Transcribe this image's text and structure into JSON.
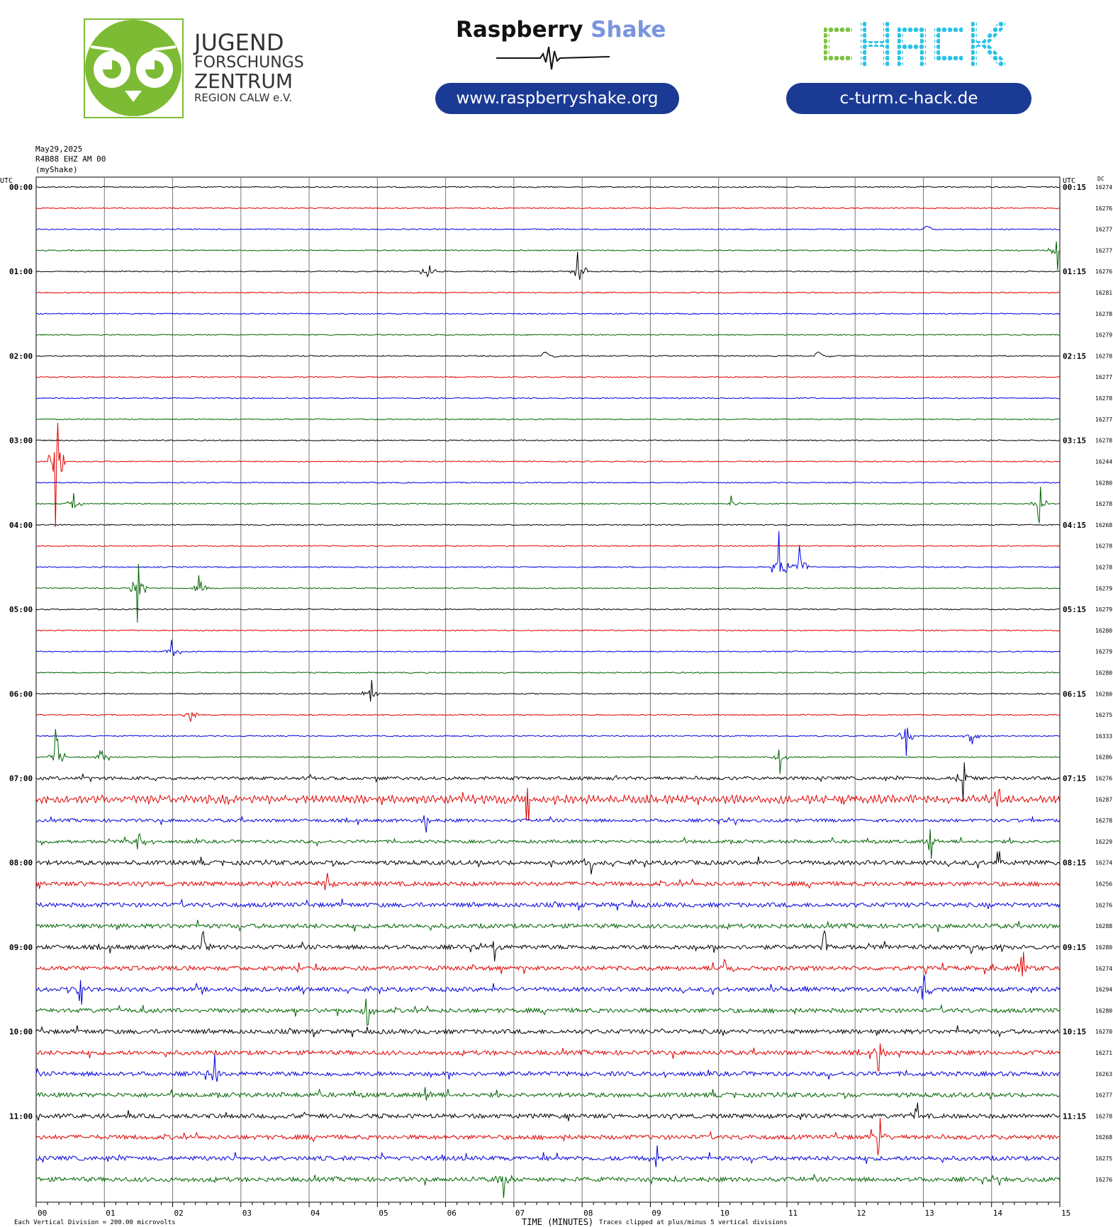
{
  "header": {
    "jfz": {
      "lines": [
        "JUGEND",
        "FORSCHUNGS",
        "ZENTRUM",
        "REGION CALW e.V."
      ],
      "color": "#7dbb35"
    },
    "rs": {
      "brand_dark": "Raspberry",
      "brand_light": "Shake",
      "url": "www.raspberryshake.org"
    },
    "chack": {
      "logo": "CHACK",
      "url": "c-turm.c-hack.de",
      "green": "#7dc241",
      "cyan": "#2bc3e6"
    }
  },
  "meta": {
    "date": "May29,2025",
    "station": "R4B88 EHZ AM 00",
    "network": "(myShake)"
  },
  "chart_data": {
    "type": "line",
    "title": "",
    "xlabel": "TIME (MINUTES)",
    "x_ticks": [
      "00",
      "01",
      "02",
      "03",
      "04",
      "05",
      "06",
      "07",
      "08",
      "09",
      "10",
      "11",
      "12",
      "13",
      "14",
      "15"
    ],
    "xlim": [
      0,
      15
    ],
    "left_axis_title": "UTC",
    "right_axis_title": "UTC",
    "dc_title": "DC",
    "colors": [
      "#000000",
      "#e00000",
      "#0000e0",
      "#006400"
    ],
    "left_labels": [
      "00:00",
      "01:00",
      "02:00",
      "03:00",
      "04:00",
      "05:00",
      "06:00",
      "07:00",
      "08:00",
      "09:00",
      "10:00",
      "11:00"
    ],
    "right_labels": [
      "00:15",
      "01:15",
      "02:15",
      "03:15",
      "04:15",
      "05:15",
      "06:15",
      "07:15",
      "08:15",
      "09:15",
      "10:15",
      "11:15"
    ],
    "dc_values": [
      "16274",
      "16276",
      "16277",
      "16277",
      "16276",
      "16281",
      "16278",
      "16279",
      "16278",
      "16277",
      "16278",
      "16277",
      "16278",
      "16244",
      "16280",
      "16278",
      "16268",
      "16278",
      "16278",
      "16279",
      "16279",
      "16280",
      "16279",
      "16280",
      "16280",
      "16275",
      "16333",
      "16286",
      "16276",
      "16287",
      "16278",
      "16229",
      "16274",
      "16256",
      "16276",
      "16288",
      "16280",
      "16274",
      "16294",
      "16280",
      "16270",
      "16271",
      "16263",
      "16277",
      "16278",
      "16268",
      "16275",
      "16276"
    ],
    "events": [
      {
        "row": 2,
        "minute": 13.0,
        "amp": 8,
        "kind": "step"
      },
      {
        "row": 3,
        "minute": 14.95,
        "amp": 30,
        "kind": "spike"
      },
      {
        "row": 4,
        "minute": 5.75,
        "amp": 25,
        "kind": "spike"
      },
      {
        "row": 4,
        "minute": 7.95,
        "amp": 40,
        "kind": "spike"
      },
      {
        "row": 8,
        "minute": 7.4,
        "amp": 10,
        "kind": "step"
      },
      {
        "row": 8,
        "minute": 11.4,
        "amp": 10,
        "kind": "step"
      },
      {
        "row": 13,
        "minute": 0.3,
        "amp": 100,
        "kind": "spike"
      },
      {
        "row": 15,
        "minute": 0.55,
        "amp": 20,
        "kind": "spike"
      },
      {
        "row": 15,
        "minute": 10.2,
        "amp": 15,
        "kind": "spike"
      },
      {
        "row": 15,
        "minute": 14.7,
        "amp": 30,
        "kind": "spike"
      },
      {
        "row": 18,
        "minute": 10.9,
        "amp": 60,
        "kind": "spike"
      },
      {
        "row": 18,
        "minute": 11.2,
        "amp": 40,
        "kind": "spike"
      },
      {
        "row": 19,
        "minute": 1.5,
        "amp": 70,
        "kind": "spike"
      },
      {
        "row": 19,
        "minute": 2.4,
        "amp": 25,
        "kind": "spike"
      },
      {
        "row": 22,
        "minute": 2.0,
        "amp": 25,
        "kind": "spike"
      },
      {
        "row": 24,
        "minute": 4.9,
        "amp": 25,
        "kind": "spike"
      },
      {
        "row": 25,
        "minute": 2.25,
        "amp": 20,
        "kind": "spike"
      },
      {
        "row": 26,
        "minute": 12.75,
        "amp": 30,
        "kind": "spike"
      },
      {
        "row": 26,
        "minute": 13.7,
        "amp": 20,
        "kind": "spike"
      },
      {
        "row": 27,
        "minute": 0.3,
        "amp": 40,
        "kind": "spike"
      },
      {
        "row": 27,
        "minute": 0.95,
        "amp": 30,
        "kind": "spike"
      },
      {
        "row": 27,
        "minute": 10.9,
        "amp": 25,
        "kind": "spike"
      },
      {
        "row": 28,
        "minute": 13.6,
        "amp": 35,
        "kind": "spike"
      },
      {
        "row": 29,
        "minute": 7.2,
        "amp": 35,
        "kind": "spike"
      },
      {
        "row": 29,
        "minute": 14.1,
        "amp": 40,
        "kind": "spike"
      },
      {
        "row": 30,
        "minute": 5.7,
        "amp": 25,
        "kind": "spike"
      },
      {
        "row": 31,
        "minute": 1.5,
        "amp": 25,
        "kind": "spike"
      },
      {
        "row": 31,
        "minute": 13.1,
        "amp": 25,
        "kind": "spike"
      },
      {
        "row": 32,
        "minute": 8.15,
        "amp": 25,
        "kind": "spike"
      },
      {
        "row": 32,
        "minute": 14.1,
        "amp": 25,
        "kind": "spike"
      },
      {
        "row": 33,
        "minute": 4.25,
        "amp": 25,
        "kind": "spike"
      },
      {
        "row": 36,
        "minute": 2.45,
        "amp": 25,
        "kind": "spike"
      },
      {
        "row": 36,
        "minute": 6.7,
        "amp": 25,
        "kind": "spike"
      },
      {
        "row": 36,
        "minute": 11.55,
        "amp": 25,
        "kind": "spike"
      },
      {
        "row": 37,
        "minute": 10.1,
        "amp": 20,
        "kind": "spike"
      },
      {
        "row": 37,
        "minute": 14.45,
        "amp": 30,
        "kind": "spike"
      },
      {
        "row": 38,
        "minute": 0.65,
        "amp": 25,
        "kind": "spike"
      },
      {
        "row": 38,
        "minute": 13.0,
        "amp": 25,
        "kind": "spike"
      },
      {
        "row": 39,
        "minute": 4.85,
        "amp": 30,
        "kind": "spike"
      },
      {
        "row": 41,
        "minute": 12.35,
        "amp": 30,
        "kind": "spike"
      },
      {
        "row": 42,
        "minute": 2.6,
        "amp": 30,
        "kind": "spike"
      },
      {
        "row": 43,
        "minute": 5.7,
        "amp": 25,
        "kind": "spike"
      },
      {
        "row": 44,
        "minute": 12.9,
        "amp": 25,
        "kind": "spike"
      },
      {
        "row": 45,
        "minute": 12.35,
        "amp": 30,
        "kind": "spike"
      },
      {
        "row": 46,
        "minute": 9.1,
        "amp": 25,
        "kind": "spike"
      },
      {
        "row": 47,
        "minute": 6.85,
        "amp": 25,
        "kind": "spike"
      }
    ]
  },
  "footer": {
    "division_note": "Each Vertical Division = 200.00 microvolts",
    "clip_note": "Traces clipped at plus/minus 5 vertical divisions"
  }
}
